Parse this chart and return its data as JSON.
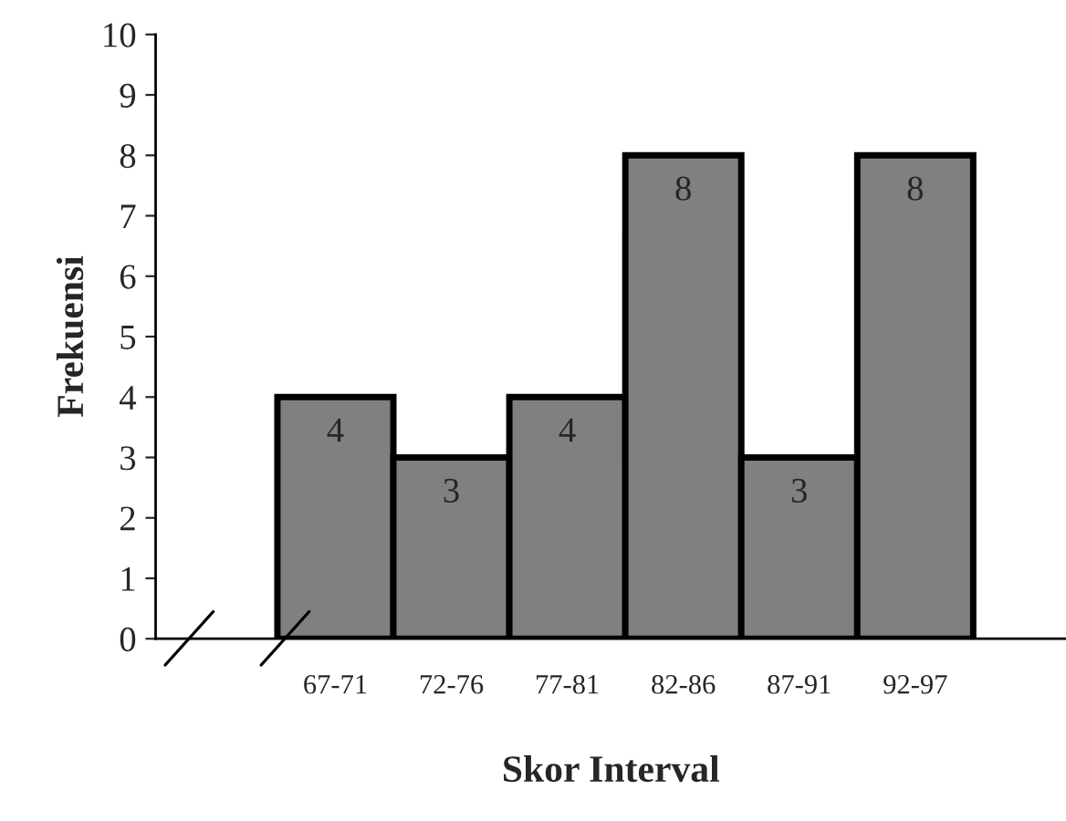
{
  "chart_data": {
    "type": "bar",
    "xlabel": "Skor Interval",
    "ylabel": "Frekuensi",
    "categories": [
      "67-71",
      "72-76",
      "77-81",
      "82-86",
      "87-91",
      "92-97"
    ],
    "values": [
      4,
      3,
      4,
      8,
      3,
      8
    ],
    "color": "#808080",
    "ylim": [
      0,
      10
    ],
    "yticks": [
      0,
      1,
      2,
      3,
      4,
      5,
      6,
      7,
      8,
      9,
      10
    ],
    "data_labels": true,
    "grid": false,
    "legend": false
  }
}
